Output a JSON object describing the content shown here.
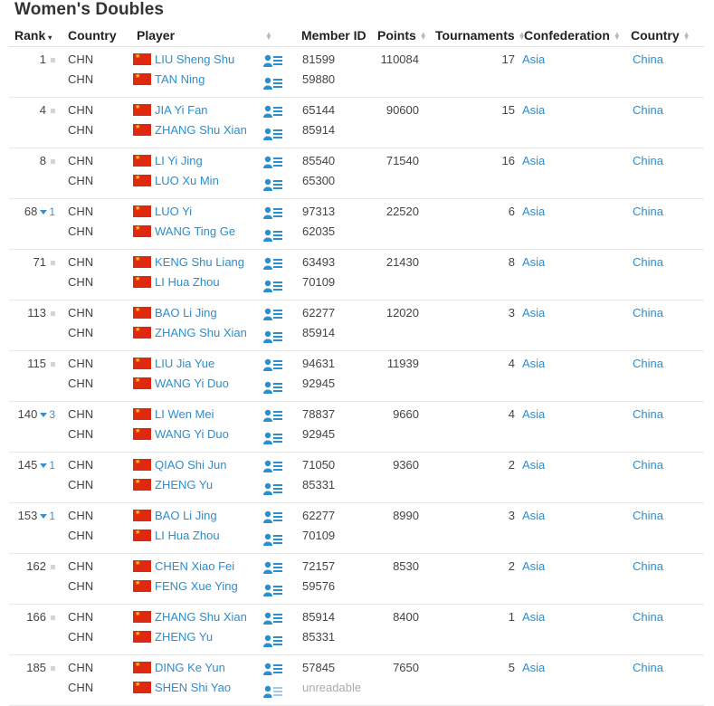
{
  "title": "Women's Doubles",
  "columns": {
    "rank": "Rank",
    "country": "Country",
    "player": "Player",
    "member_id": "Member ID",
    "points": "Points",
    "tournaments": "Tournaments",
    "confederation": "Confederation",
    "country2": "Country"
  },
  "colors": {
    "link": "#2a8fcf",
    "flag": "#de2910"
  },
  "rows": [
    {
      "rank": "1",
      "change": "",
      "p1": {
        "country": "CHN",
        "name": "LIU Sheng Shu",
        "id": "81599"
      },
      "p2": {
        "country": "CHN",
        "name": "TAN Ning",
        "id": "59880"
      },
      "points": "110084",
      "tournaments": "17",
      "confederation": "Asia",
      "country": "China"
    },
    {
      "rank": "4",
      "change": "",
      "p1": {
        "country": "CHN",
        "name": "JIA Yi Fan",
        "id": "65144"
      },
      "p2": {
        "country": "CHN",
        "name": "ZHANG Shu Xian",
        "id": "85914"
      },
      "points": "90600",
      "tournaments": "15",
      "confederation": "Asia",
      "country": "China"
    },
    {
      "rank": "8",
      "change": "",
      "p1": {
        "country": "CHN",
        "name": "LI Yi Jing",
        "id": "85540"
      },
      "p2": {
        "country": "CHN",
        "name": "LUO Xu Min",
        "id": "65300"
      },
      "points": "71540",
      "tournaments": "16",
      "confederation": "Asia",
      "country": "China"
    },
    {
      "rank": "68",
      "change": "1",
      "p1": {
        "country": "CHN",
        "name": "LUO Yi",
        "id": "97313"
      },
      "p2": {
        "country": "CHN",
        "name": "WANG Ting Ge",
        "id": "62035"
      },
      "points": "22520",
      "tournaments": "6",
      "confederation": "Asia",
      "country": "China"
    },
    {
      "rank": "71",
      "change": "",
      "p1": {
        "country": "CHN",
        "name": "KENG Shu Liang",
        "id": "63493"
      },
      "p2": {
        "country": "CHN",
        "name": "LI Hua Zhou",
        "id": "70109"
      },
      "points": "21430",
      "tournaments": "8",
      "confederation": "Asia",
      "country": "China"
    },
    {
      "rank": "113",
      "change": "",
      "p1": {
        "country": "CHN",
        "name": "BAO Li Jing",
        "id": "62277"
      },
      "p2": {
        "country": "CHN",
        "name": "ZHANG Shu Xian",
        "id": "85914"
      },
      "points": "12020",
      "tournaments": "3",
      "confederation": "Asia",
      "country": "China"
    },
    {
      "rank": "115",
      "change": "",
      "p1": {
        "country": "CHN",
        "name": "LIU Jia Yue",
        "id": "94631"
      },
      "p2": {
        "country": "CHN",
        "name": "WANG Yi Duo",
        "id": "92945"
      },
      "points": "11939",
      "tournaments": "4",
      "confederation": "Asia",
      "country": "China"
    },
    {
      "rank": "140",
      "change": "3",
      "p1": {
        "country": "CHN",
        "name": "LI Wen Mei",
        "id": "78837"
      },
      "p2": {
        "country": "CHN",
        "name": "WANG Yi Duo",
        "id": "92945"
      },
      "points": "9660",
      "tournaments": "4",
      "confederation": "Asia",
      "country": "China"
    },
    {
      "rank": "145",
      "change": "1",
      "p1": {
        "country": "CHN",
        "name": "QIAO Shi Jun",
        "id": "71050"
      },
      "p2": {
        "country": "CHN",
        "name": "ZHENG Yu",
        "id": "85331"
      },
      "points": "9360",
      "tournaments": "2",
      "confederation": "Asia",
      "country": "China"
    },
    {
      "rank": "153",
      "change": "1",
      "p1": {
        "country": "CHN",
        "name": "BAO Li Jing",
        "id": "62277"
      },
      "p2": {
        "country": "CHN",
        "name": "LI Hua Zhou",
        "id": "70109"
      },
      "points": "8990",
      "tournaments": "3",
      "confederation": "Asia",
      "country": "China"
    },
    {
      "rank": "162",
      "change": "",
      "p1": {
        "country": "CHN",
        "name": "CHEN Xiao Fei",
        "id": "72157"
      },
      "p2": {
        "country": "CHN",
        "name": "FENG Xue Ying",
        "id": "59576"
      },
      "points": "8530",
      "tournaments": "2",
      "confederation": "Asia",
      "country": "China"
    },
    {
      "rank": "166",
      "change": "",
      "p1": {
        "country": "CHN",
        "name": "ZHANG Shu Xian",
        "id": "85914"
      },
      "p2": {
        "country": "CHN",
        "name": "ZHENG Yu",
        "id": "85331"
      },
      "points": "8400",
      "tournaments": "1",
      "confederation": "Asia",
      "country": "China"
    },
    {
      "rank": "185",
      "change": "",
      "p1": {
        "country": "CHN",
        "name": "DING Ke Yun",
        "id": "57845"
      },
      "p2": {
        "country": "CHN",
        "name": "SHEN Shi Yao",
        "id": "unreadable"
      },
      "points": "7650",
      "tournaments": "5",
      "confederation": "Asia",
      "country": "China"
    }
  ]
}
